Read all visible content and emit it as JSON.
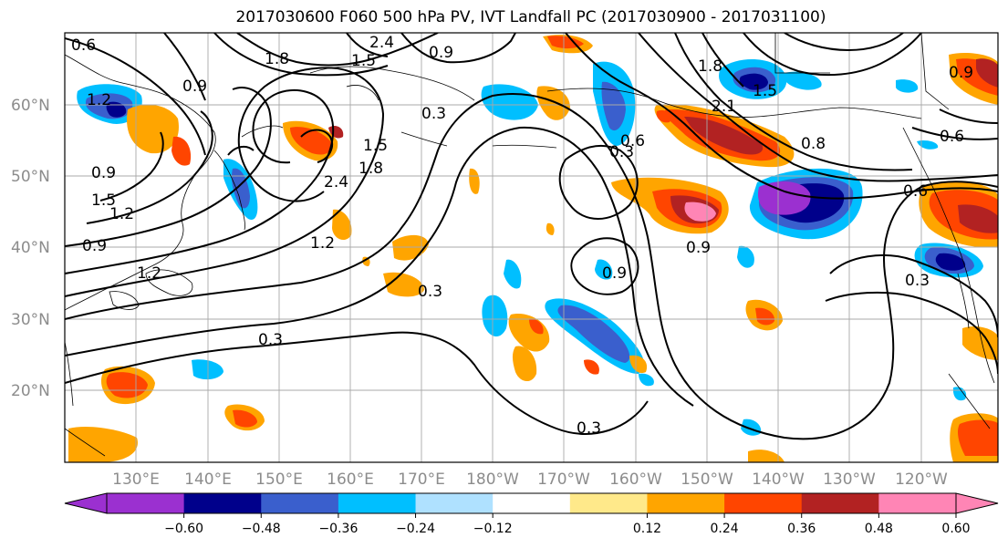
{
  "title": "2017030600 F060 500 hPa PV, IVT Landfall PC (2017030900 - 2017031100)",
  "lat_labels": [
    "60°N",
    "50°N",
    "40°N",
    "30°N",
    "20°N"
  ],
  "lon_labels": [
    "130°E",
    "140°E",
    "150°E",
    "160°E",
    "170°E",
    "180°W",
    "170°W",
    "160°W",
    "150°W",
    "140°W",
    "130°W",
    "120°W"
  ],
  "contour_labels": [
    "0.6",
    "1.2",
    "0.9",
    "1.8",
    "2.4",
    "1.5",
    "0.9",
    "0.3",
    "1.8",
    "1.5",
    "0.6",
    "0.9",
    "1.5",
    "2.1",
    "0.3",
    "2.4",
    "1.8",
    "1.2",
    "1.2",
    "0.9",
    "1.5",
    "1.2",
    "0.9",
    "0.3",
    "0.6",
    "0.9",
    "0.3",
    "0.6",
    "0.3",
    "0.3",
    "0.8",
    "0.9"
  ],
  "colorbar": {
    "colors": [
      "#9b30d0",
      "#00008b",
      "#3a5fcd",
      "#00bfff",
      "#afe1ff",
      "#ffffff",
      "#ffe98a",
      "#ffa500",
      "#ff4500",
      "#b22222",
      "#ff85b5"
    ],
    "under_color": "#9b30d0",
    "over_color": "#ff85b5",
    "ticks": [
      "−0.60",
      "−0.48",
      "−0.36",
      "−0.24",
      "−0.12",
      "0.12",
      "0.24",
      "0.36",
      "0.48",
      "0.60"
    ]
  }
}
